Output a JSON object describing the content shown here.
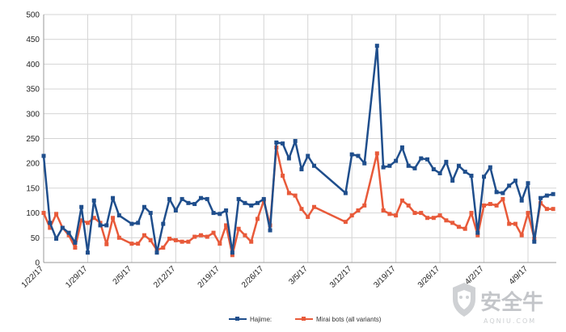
{
  "chart_data": {
    "type": "line",
    "ylim": [
      0,
      500
    ],
    "y_ticks": [
      0,
      50,
      100,
      150,
      200,
      250,
      300,
      350,
      400,
      450,
      500
    ],
    "x_tick_labels": [
      "1/22/17",
      "1/29/17",
      "2/5/17",
      "2/12/17",
      "2/19/17",
      "2/26/17",
      "3/5/17",
      "3/12/17",
      "3/19/17",
      "3/26/17",
      "4/2/17",
      "4/9/17"
    ],
    "x_tick_days": [
      0,
      7,
      14,
      21,
      28,
      35,
      42,
      49,
      56,
      63,
      70,
      77
    ],
    "xlim_days": [
      0,
      81.5
    ],
    "grid": true,
    "legend_position": "bottom",
    "x": [
      0,
      1,
      2,
      3,
      4,
      5,
      6,
      7,
      8,
      9,
      10,
      11,
      12,
      14,
      15,
      16,
      17,
      18,
      19,
      20,
      21,
      22,
      23,
      24,
      25,
      26,
      27,
      28,
      29,
      30,
      31,
      32,
      33,
      34,
      35,
      36,
      37,
      38,
      39,
      40,
      41,
      42,
      43,
      48,
      49,
      50,
      51,
      53,
      54,
      55,
      56,
      57,
      58,
      59,
      60,
      61,
      62,
      63,
      64,
      65,
      66,
      67,
      68,
      69,
      70,
      71,
      72,
      73,
      74,
      75,
      76,
      77,
      78,
      79,
      80,
      81
    ],
    "series": [
      {
        "name": "Hajime:",
        "color": "#1f4e8c",
        "values": [
          215,
          80,
          48,
          70,
          60,
          40,
          112,
          20,
          125,
          75,
          75,
          130,
          95,
          78,
          80,
          112,
          100,
          20,
          78,
          128,
          105,
          128,
          120,
          118,
          130,
          128,
          100,
          98,
          105,
          20,
          128,
          120,
          115,
          120,
          128,
          65,
          242,
          240,
          210,
          245,
          188,
          215,
          195,
          140,
          218,
          215,
          200,
          437,
          192,
          195,
          205,
          232,
          195,
          190,
          210,
          208,
          188,
          180,
          203,
          165,
          195,
          183,
          175,
          60,
          173,
          192,
          142,
          140,
          155,
          165,
          125,
          160,
          42,
          130,
          135,
          138
        ]
      },
      {
        "name": "Mirai bots (all variants)",
        "color": "#e85a3a",
        "values": [
          100,
          70,
          98,
          70,
          55,
          30,
          85,
          80,
          90,
          80,
          37,
          90,
          50,
          38,
          38,
          55,
          45,
          25,
          30,
          48,
          45,
          42,
          42,
          52,
          55,
          52,
          60,
          38,
          75,
          15,
          68,
          55,
          42,
          88,
          125,
          75,
          232,
          175,
          140,
          135,
          108,
          92,
          112,
          82,
          95,
          105,
          115,
          220,
          105,
          98,
          95,
          125,
          115,
          100,
          100,
          90,
          90,
          95,
          85,
          80,
          72,
          68,
          100,
          55,
          115,
          118,
          115,
          128,
          78,
          78,
          55,
          100,
          48,
          120,
          108,
          108
        ]
      }
    ]
  }
}
